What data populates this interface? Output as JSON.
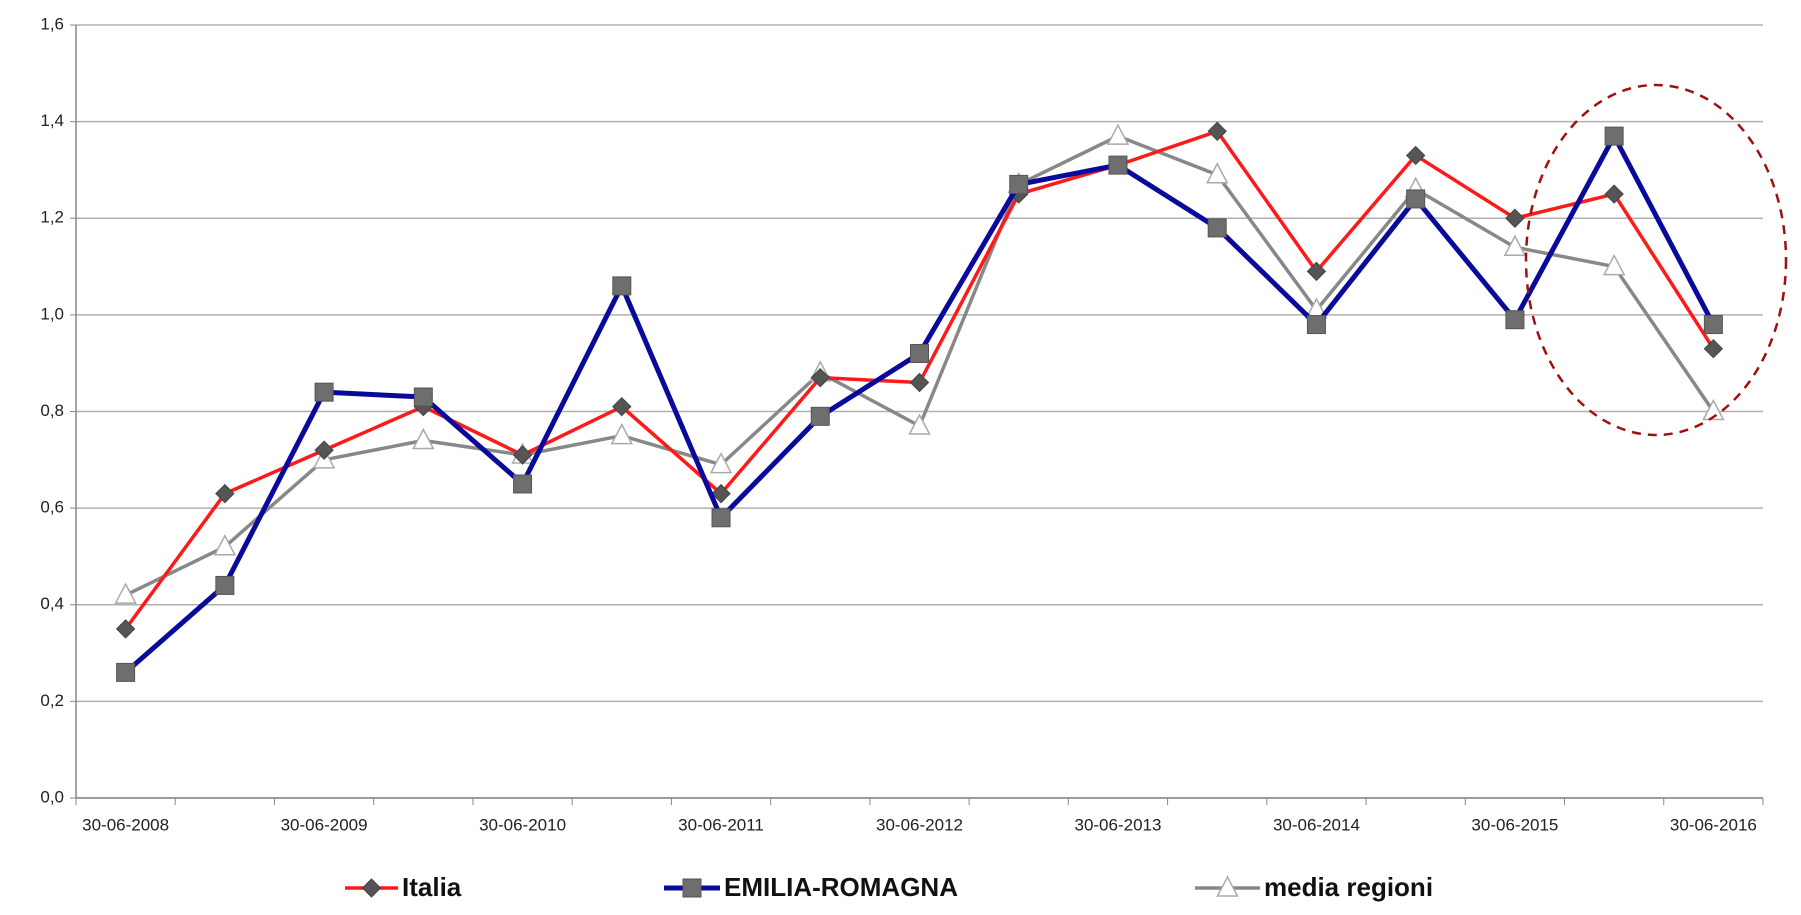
{
  "chart_data": {
    "type": "line",
    "categories": [
      "30-06-2008",
      null,
      "30-06-2009",
      null,
      "30-06-2010",
      null,
      "30-06-2011",
      null,
      "30-06-2012",
      null,
      "30-06-2013",
      null,
      "30-06-2014",
      null,
      "30-06-2015",
      null,
      "30-06-2016"
    ],
    "series": [
      {
        "name": "Italia",
        "color": "#ff1a1a",
        "marker": "diamond",
        "values": [
          0.35,
          0.63,
          0.72,
          0.81,
          0.71,
          0.81,
          0.63,
          0.87,
          0.86,
          1.25,
          1.31,
          1.38,
          1.09,
          1.33,
          1.2,
          1.25,
          0.93
        ]
      },
      {
        "name": "EMILIA-ROMAGNA",
        "color": "#0a0a9a",
        "marker": "square",
        "values": [
          0.26,
          0.44,
          0.84,
          0.83,
          0.65,
          1.06,
          0.58,
          0.79,
          0.92,
          1.27,
          1.31,
          1.18,
          0.98,
          1.24,
          0.99,
          1.37,
          0.98
        ]
      },
      {
        "name": "media regioni",
        "color": "#888888",
        "marker": "triangle",
        "values": [
          0.42,
          0.52,
          0.7,
          0.74,
          0.71,
          0.75,
          0.69,
          0.88,
          0.77,
          1.27,
          1.37,
          1.29,
          1.01,
          1.26,
          1.14,
          1.1,
          0.8
        ]
      }
    ],
    "ylim": [
      0,
      1.6
    ],
    "yticks": [
      {
        "value": 0,
        "label": "0,0"
      },
      {
        "value": 0.2,
        "label": "0,2"
      },
      {
        "value": 0.4,
        "label": "0,4"
      },
      {
        "value": 0.6,
        "label": "0,6"
      },
      {
        "value": 0.8,
        "label": "0,8"
      },
      {
        "value": 1.0,
        "label": "1,0"
      },
      {
        "value": 1.2,
        "label": "1,2"
      },
      {
        "value": 1.4,
        "label": "1,4"
      },
      {
        "value": 1.6,
        "label": "1,6"
      }
    ],
    "grid": true,
    "legend": "bottom"
  }
}
